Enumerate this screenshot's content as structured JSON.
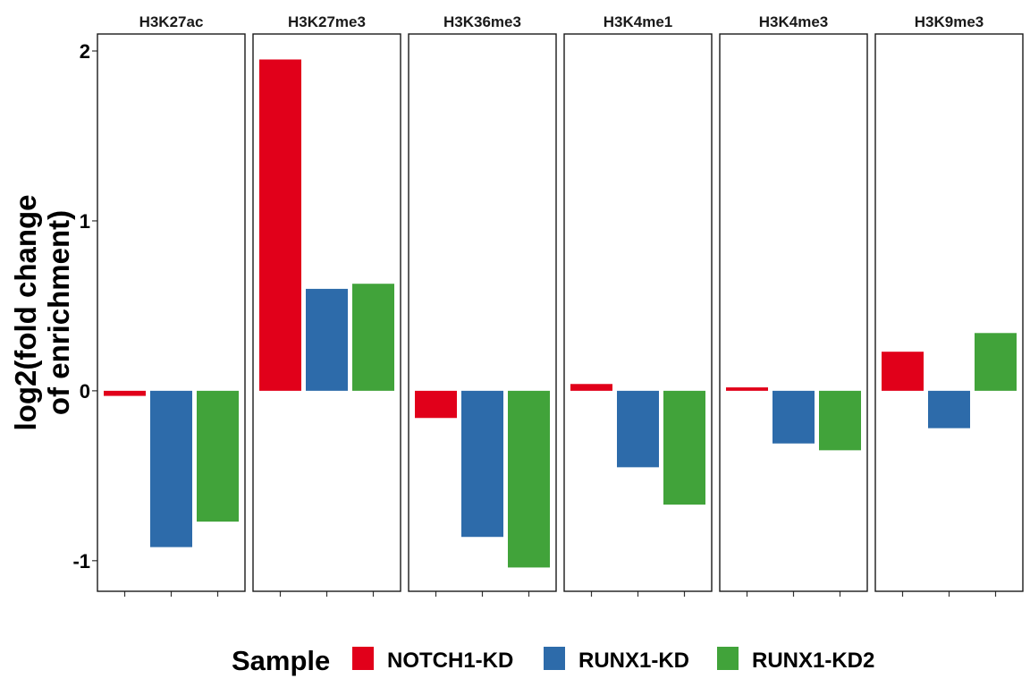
{
  "chart_data": {
    "type": "bar",
    "facet_by": "mark",
    "panels": [
      "H3K27ac",
      "H3K27me3",
      "H3K36me3",
      "H3K4me1",
      "H3K4me3",
      "H3K9me3"
    ],
    "series": [
      {
        "name": "NOTCH1-KD",
        "color": "#E1001A",
        "values": [
          -0.03,
          1.95,
          -0.16,
          0.04,
          0.02,
          0.23
        ]
      },
      {
        "name": "RUNX1-KD",
        "color": "#2D6BAA",
        "values": [
          -0.92,
          0.6,
          -0.86,
          -0.45,
          -0.31,
          -0.22
        ]
      },
      {
        "name": "RUNX1-KD2",
        "color": "#41A33A",
        "values": [
          -0.77,
          0.63,
          -1.04,
          -0.67,
          -0.35,
          0.34
        ]
      }
    ],
    "ylabel_lines": [
      "log2(fold change",
      "of enrichment)"
    ],
    "yticks": [
      -1,
      0,
      1,
      2
    ],
    "ytick_labels": [
      "-1",
      "0",
      "1",
      "2"
    ],
    "ylim": [
      -1.18,
      2.1
    ],
    "grid": false,
    "legend_title": "Sample",
    "legend_position": "bottom"
  }
}
